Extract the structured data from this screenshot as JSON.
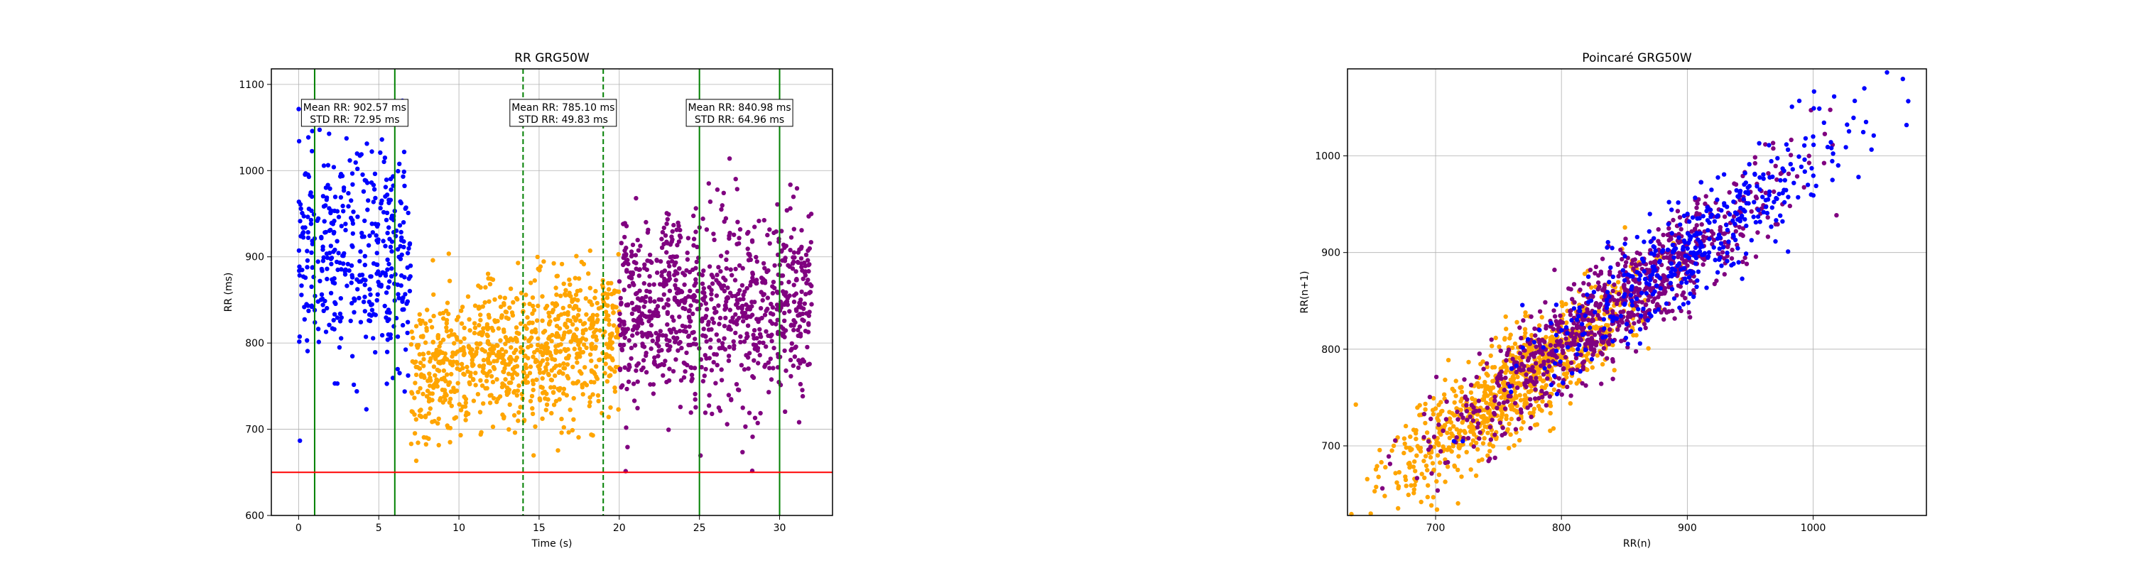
{
  "chart_data": [
    {
      "type": "scatter",
      "title": "RR GRG50W",
      "xlabel": "Time (s)",
      "ylabel": "RR (ms)",
      "xlim": [
        -1.7,
        33.3
      ],
      "ylim": [
        600,
        1118
      ],
      "xticks": [
        0,
        5,
        10,
        15,
        20,
        25,
        30
      ],
      "yticks": [
        600,
        700,
        800,
        900,
        1000,
        1100
      ],
      "grid": true,
      "colors": {
        "blue": "#0000ff",
        "orange": "#ffa500",
        "purple": "#800080",
        "window_line": "#008000",
        "threshold_line": "#ff0000"
      },
      "series": [
        {
          "color": "blue",
          "x_range": [
            0,
            7
          ],
          "n": 420,
          "level": 902.57,
          "std": 72.95
        },
        {
          "color": "orange",
          "x_range": [
            7,
            20
          ],
          "n": 900,
          "level": 760,
          "std": 50
        },
        {
          "color": "purple",
          "x_range": [
            20,
            32
          ],
          "n": 900,
          "level": 838,
          "std": 66
        }
      ],
      "vertical_lines": [
        {
          "x": 1,
          "style": "solid"
        },
        {
          "x": 6,
          "style": "solid"
        },
        {
          "x": 14,
          "style": "dashed"
        },
        {
          "x": 19,
          "style": "dashed"
        },
        {
          "x": 25,
          "style": "solid"
        },
        {
          "x": 30,
          "style": "solid"
        }
      ],
      "threshold_line": {
        "y": 650
      },
      "annotations": [
        {
          "x": 3.5,
          "y": 1067,
          "line1": "Mean RR: 902.57 ms",
          "line2": "STD RR: 72.95 ms"
        },
        {
          "x": 16.5,
          "y": 1067,
          "line1": "Mean RR: 785.10 ms",
          "line2": "STD RR: 49.83 ms"
        },
        {
          "x": 27.5,
          "y": 1067,
          "line1": "Mean RR: 840.98 ms",
          "line2": "STD RR: 64.96 ms"
        }
      ]
    },
    {
      "type": "scatter",
      "title": "Poincaré GRG50W",
      "xlabel": "RR(n)",
      "ylabel": "RR(n+1)",
      "xlim": [
        630,
        1090
      ],
      "ylim": [
        628,
        1090
      ],
      "xticks": [
        700,
        800,
        900,
        1000
      ],
      "yticks": [
        700,
        800,
        900,
        1000
      ],
      "grid": true,
      "colors": {
        "blue": "#0000ff",
        "orange": "#ffa500",
        "purple": "#800080"
      },
      "series": [
        {
          "color": "orange",
          "n": 900,
          "center": 765,
          "spread": 48
        },
        {
          "color": "purple",
          "n": 900,
          "center": 840,
          "spread": 62
        },
        {
          "color": "blue",
          "n": 420,
          "center": 905,
          "spread": 65
        }
      ]
    }
  ]
}
